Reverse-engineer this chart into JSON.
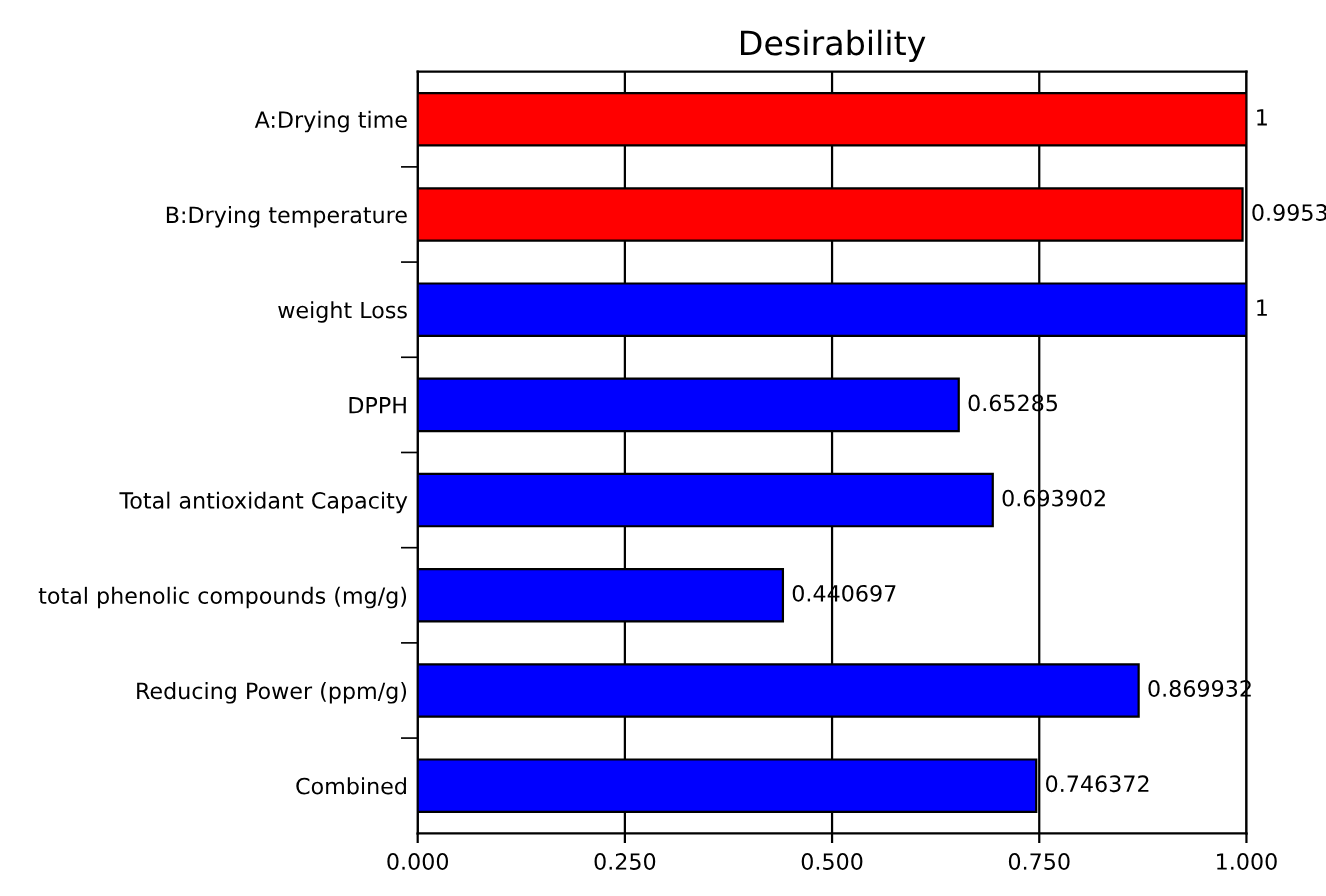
{
  "chart_data": {
    "type": "bar",
    "orientation": "horizontal",
    "title": "Desirability",
    "categories": [
      "A:Drying time",
      "B:Drying temperature",
      "weight Loss",
      "DPPH",
      "Total antioxidant Capacity",
      "total phenolic compounds (mg/g)",
      "Reducing Power (ppm/g)",
      "Combined"
    ],
    "values": [
      1,
      0.9953,
      1,
      0.65285,
      0.693902,
      0.440697,
      0.869932,
      0.746372
    ],
    "colors": [
      "#ff0000",
      "#ff0000",
      "#0000ff",
      "#0000ff",
      "#0000ff",
      "#0000ff",
      "#0000ff",
      "#0000ff"
    ],
    "xlim": [
      0,
      1
    ],
    "xticks": [
      {
        "value": 0,
        "label": "0.000"
      },
      {
        "value": 0.25,
        "label": "0.250"
      },
      {
        "value": 0.5,
        "label": "0.500"
      },
      {
        "value": 0.75,
        "label": "0.750"
      },
      {
        "value": 1,
        "label": "1.000"
      }
    ],
    "grid": "x",
    "data_labels": true
  }
}
